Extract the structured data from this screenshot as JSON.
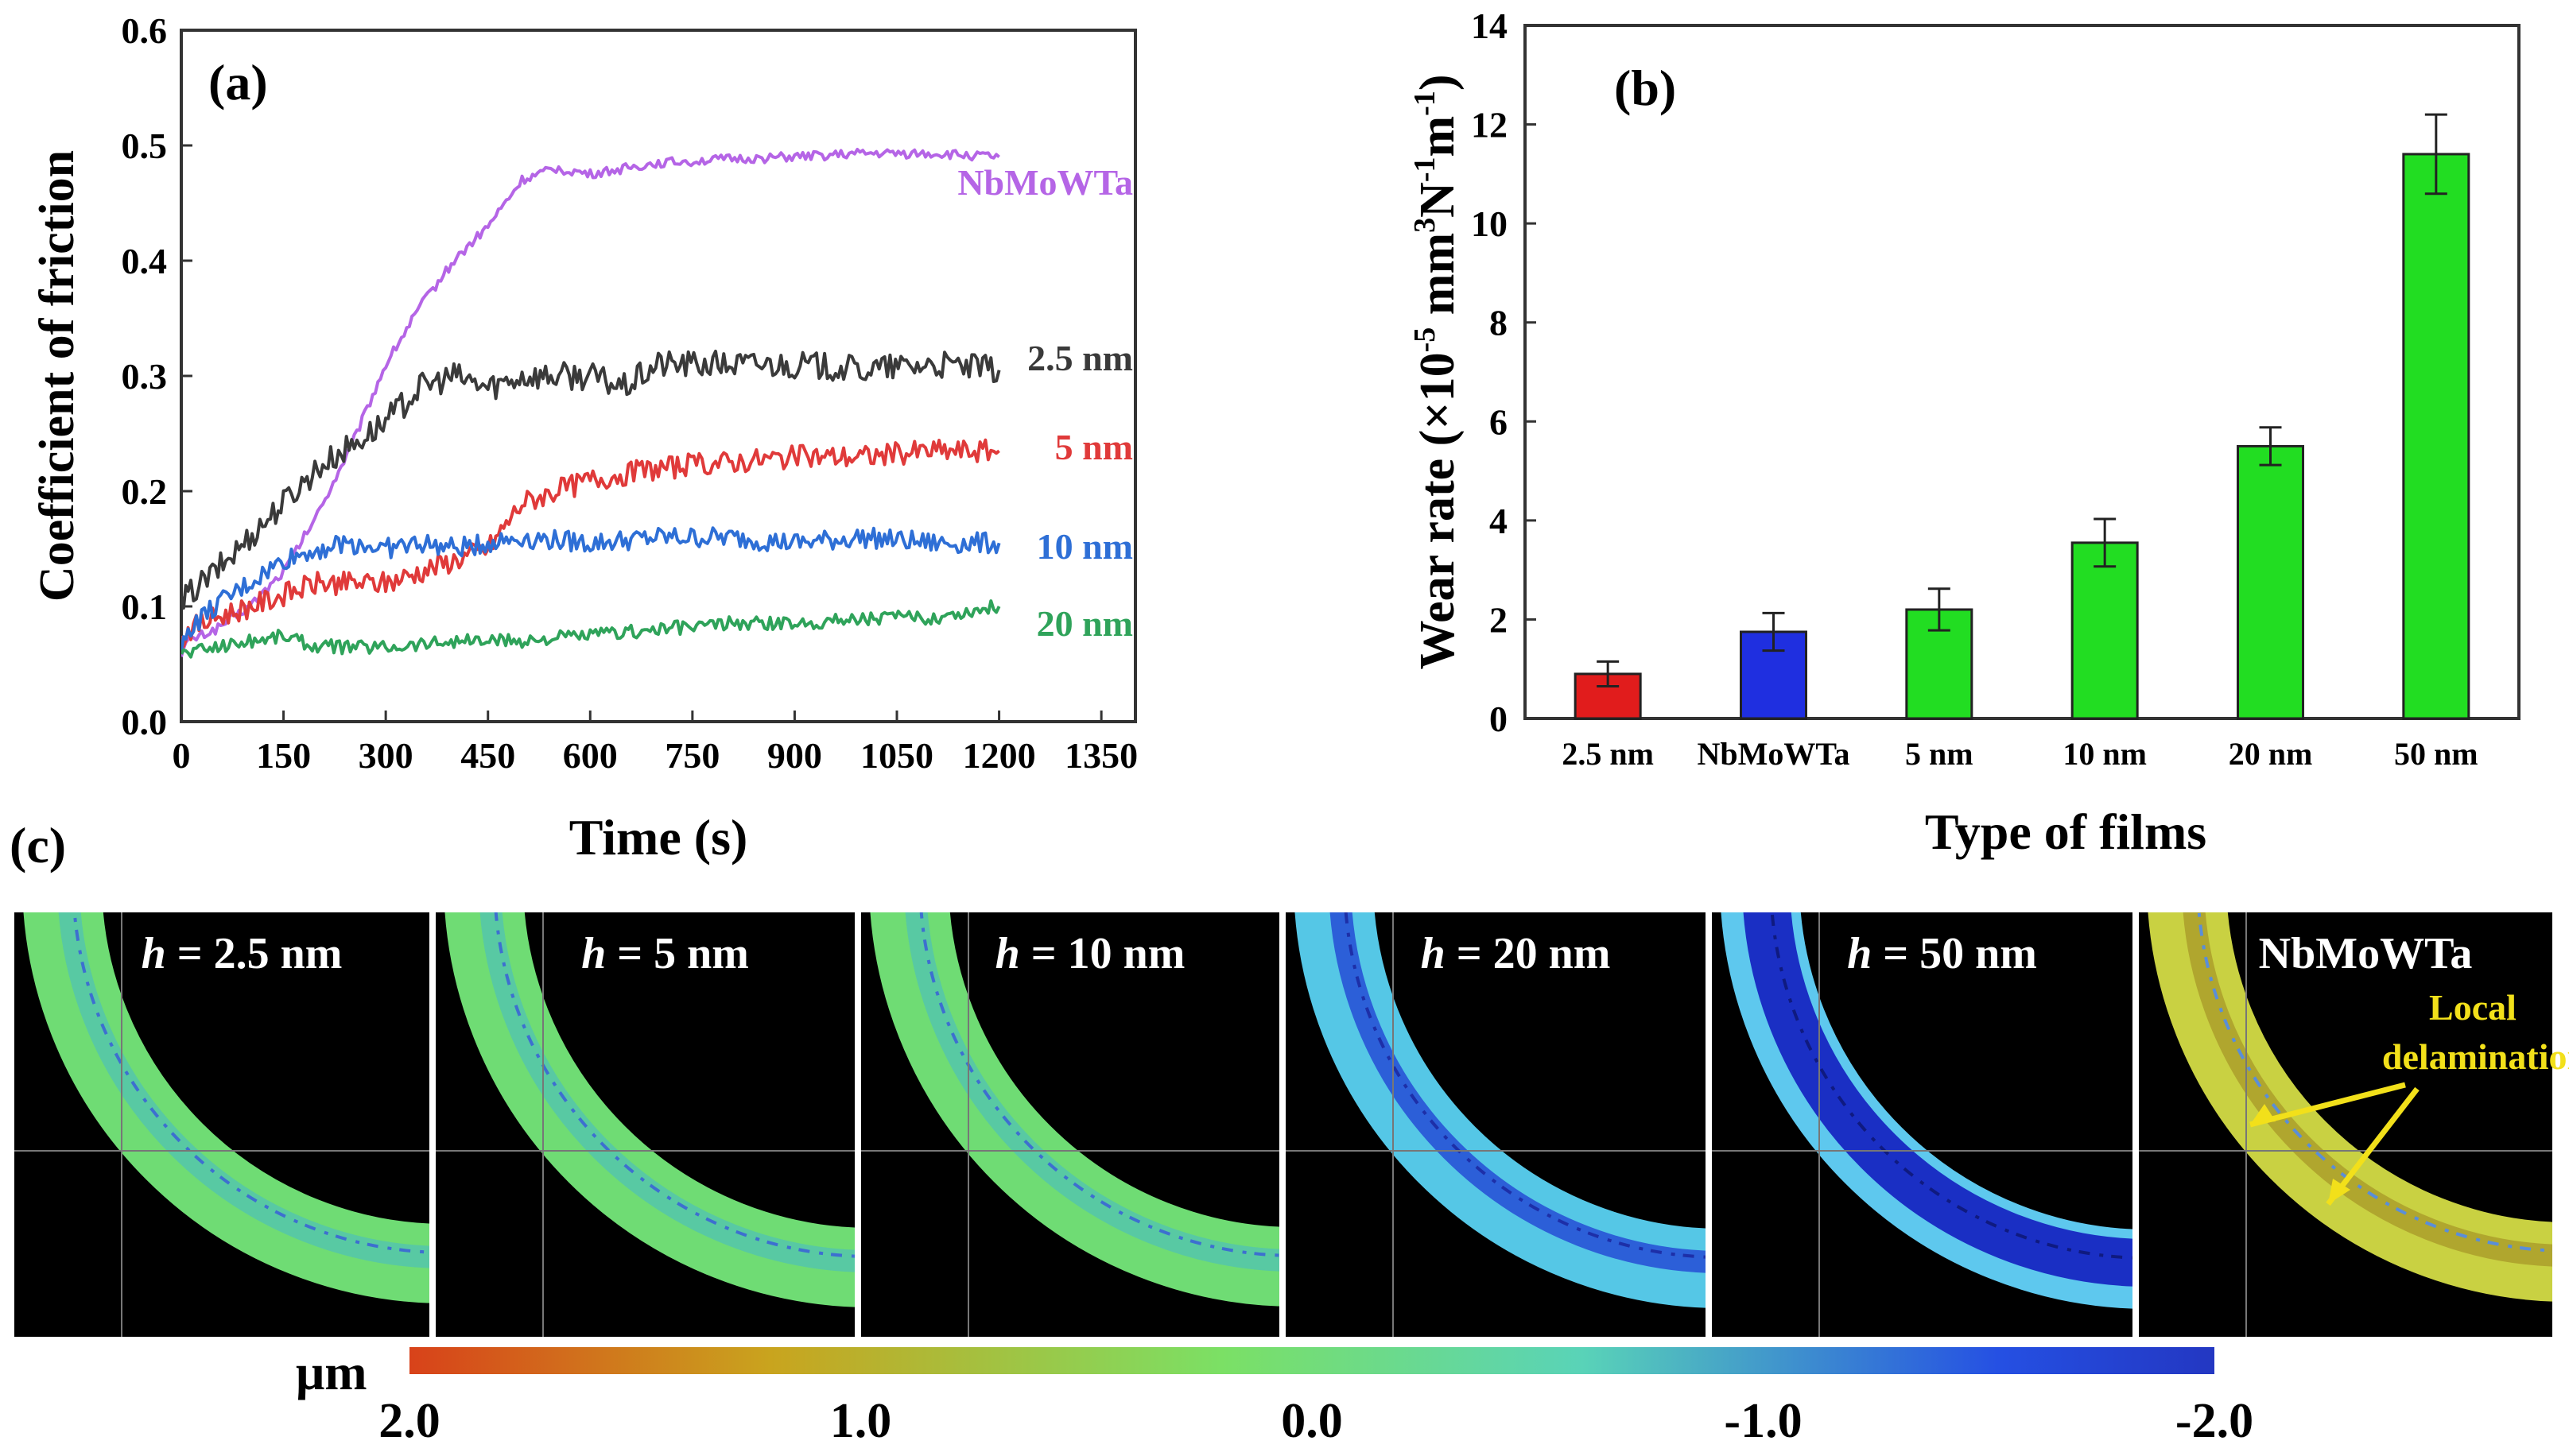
{
  "chart_data": [
    {
      "type": "line",
      "panel_label": "(a)",
      "xlabel": "Time (s)",
      "ylabel": "Coefficient of friction",
      "xlim": [
        0,
        1400
      ],
      "ylim": [
        0,
        0.6
      ],
      "xticks": [
        "0",
        "150",
        "300",
        "450",
        "600",
        "750",
        "900",
        "1050",
        "1200",
        "1350"
      ],
      "yticks": [
        "0.0",
        "0.1",
        "0.2",
        "0.3",
        "0.4",
        "0.5",
        "0.6"
      ],
      "series": [
        {
          "name": "NbMoWTa",
          "color": "#b565e6",
          "x": [
            0,
            10,
            50,
            100,
            150,
            200,
            250,
            300,
            350,
            400,
            450,
            500,
            550,
            600,
            700,
            800,
            900,
            1000,
            1100,
            1200
          ],
          "y": [
            0.06,
            0.07,
            0.08,
            0.1,
            0.13,
            0.18,
            0.24,
            0.31,
            0.36,
            0.4,
            0.43,
            0.47,
            0.48,
            0.475,
            0.485,
            0.488,
            0.49,
            0.493,
            0.493,
            0.49
          ]
        },
        {
          "name": "2.5 nm",
          "color": "#3a3a3a",
          "x": [
            0,
            10,
            50,
            100,
            150,
            200,
            250,
            300,
            350,
            400,
            450,
            500,
            550,
            600,
            650,
            700,
            800,
            900,
            1000,
            1100,
            1200
          ],
          "y": [
            0.1,
            0.11,
            0.13,
            0.16,
            0.19,
            0.22,
            0.24,
            0.26,
            0.29,
            0.3,
            0.29,
            0.3,
            0.3,
            0.3,
            0.29,
            0.31,
            0.31,
            0.31,
            0.305,
            0.31,
            0.305
          ]
        },
        {
          "name": "5 nm",
          "color": "#e03a3a",
          "x": [
            0,
            10,
            50,
            100,
            150,
            200,
            250,
            300,
            350,
            400,
            450,
            500,
            550,
            600,
            700,
            800,
            900,
            1000,
            1100,
            1200
          ],
          "y": [
            0.07,
            0.08,
            0.09,
            0.1,
            0.11,
            0.12,
            0.12,
            0.12,
            0.13,
            0.14,
            0.15,
            0.19,
            0.2,
            0.21,
            0.22,
            0.225,
            0.23,
            0.23,
            0.235,
            0.235
          ]
        },
        {
          "name": "10 nm",
          "color": "#2e6fd6",
          "x": [
            0,
            10,
            50,
            100,
            150,
            200,
            250,
            300,
            350,
            400,
            450,
            500,
            600,
            700,
            800,
            900,
            1000,
            1100,
            1200
          ],
          "y": [
            0.06,
            0.08,
            0.1,
            0.12,
            0.14,
            0.15,
            0.155,
            0.15,
            0.155,
            0.15,
            0.155,
            0.16,
            0.155,
            0.16,
            0.16,
            0.155,
            0.16,
            0.155,
            0.155
          ]
        },
        {
          "name": "20 nm",
          "color": "#2fa35a",
          "x": [
            0,
            10,
            50,
            100,
            150,
            200,
            300,
            400,
            500,
            600,
            700,
            800,
            900,
            1000,
            1100,
            1200
          ],
          "y": [
            0.06,
            0.06,
            0.065,
            0.07,
            0.075,
            0.065,
            0.065,
            0.07,
            0.07,
            0.075,
            0.08,
            0.085,
            0.085,
            0.09,
            0.09,
            0.1
          ]
        }
      ]
    },
    {
      "type": "bar",
      "panel_label": "(b)",
      "xlabel": "Type of films",
      "ylabel_parts": [
        "Wear rate (×10",
        "-5",
        " mm",
        "3",
        "N",
        "-1",
        "m",
        "-1",
        ")"
      ],
      "ylim": [
        0,
        14
      ],
      "yticks": [
        "0",
        "2",
        "4",
        "6",
        "8",
        "10",
        "12",
        "14"
      ],
      "categories": [
        "2.5 nm",
        "NbMoWTa",
        "5 nm",
        "10 nm",
        "20 nm",
        "50 nm"
      ],
      "values": [
        0.9,
        1.75,
        2.2,
        3.55,
        5.5,
        11.4
      ],
      "errors": [
        0.25,
        0.38,
        0.42,
        0.48,
        0.38,
        0.8
      ],
      "colors": [
        "#e11c1c",
        "#1f2fe0",
        "#22dd22",
        "#22dd22",
        "#22dd22",
        "#22dd22"
      ]
    }
  ],
  "panel_c": {
    "label": "(c)",
    "tiles": [
      {
        "h_prefix": "h",
        "text": " = 2.5 nm",
        "style": "green"
      },
      {
        "h_prefix": "h",
        "text": " = 5 nm",
        "style": "green"
      },
      {
        "h_prefix": "h",
        "text": " = 10 nm",
        "style": "green"
      },
      {
        "h_prefix": "h",
        "text": " = 20 nm",
        "style": "cyan"
      },
      {
        "h_prefix": "h",
        "text": " = 50 nm",
        "style": "blue"
      },
      {
        "h_prefix": "",
        "text": "NbMoWTa",
        "style": "yellow"
      }
    ],
    "annotation": [
      "Local",
      "delamination"
    ],
    "annotation_color": "#f2e01a",
    "colorbar": {
      "unit": "μm",
      "ticks": [
        "2.0",
        "1.0",
        "0.0",
        "-1.0",
        "-2.0"
      ],
      "colors": [
        "#d8421a",
        "#c9a41e",
        "#7be065",
        "#59d3b8",
        "#2550e3",
        "#2337c2"
      ]
    }
  }
}
